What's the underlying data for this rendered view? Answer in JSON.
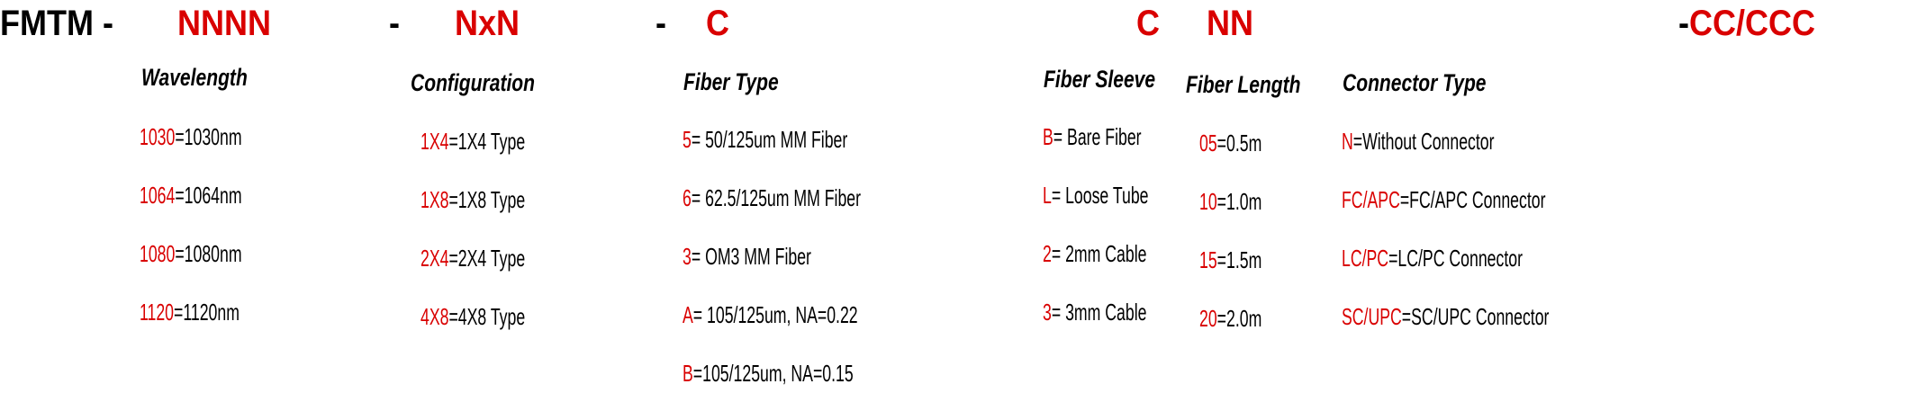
{
  "code_line": {
    "prefix": "FMTM -",
    "segments": [
      "NNNN",
      "-",
      "NxN",
      "-",
      "C",
      "C",
      "NN",
      "-",
      "CC/CCC"
    ]
  },
  "colors": {
    "code": "#d90000",
    "text": "#000000"
  },
  "columns": [
    {
      "title": "Wavelength",
      "items": [
        {
          "code": "1030",
          "desc": "=1030nm"
        },
        {
          "code": "1064",
          "desc": "=1064nm"
        },
        {
          "code": "1080",
          "desc": "=1080nm"
        },
        {
          "code": "1120",
          "desc": "=1120nm"
        }
      ]
    },
    {
      "title": "Configuration",
      "items": [
        {
          "code": "1X4",
          "desc": "=1X4 Type"
        },
        {
          "code": "1X8",
          "desc": "=1X8 Type"
        },
        {
          "code": "2X4",
          "desc": "=2X4 Type"
        },
        {
          "code": "4X8",
          "desc": "=4X8 Type"
        }
      ]
    },
    {
      "title": "Fiber Type",
      "items": [
        {
          "code": "5",
          "desc": "= 50/125um MM Fiber"
        },
        {
          "code": "6",
          "desc": "= 62.5/125um MM Fiber"
        },
        {
          "code": "3",
          "desc": "= OM3 MM Fiber"
        },
        {
          "code": "A",
          "desc": "= 105/125um, NA=0.22"
        },
        {
          "code": "B",
          "desc": "=105/125um, NA=0.15"
        }
      ]
    },
    {
      "title": "Fiber Sleeve",
      "items": [
        {
          "code": "B",
          "desc": "= Bare Fiber"
        },
        {
          "code": "L",
          "desc": "= Loose Tube"
        },
        {
          "code": "2",
          "desc": "= 2mm Cable"
        },
        {
          "code": "3",
          "desc": "= 3mm Cable"
        }
      ]
    },
    {
      "title": "Fiber Length",
      "items": [
        {
          "code": "05",
          "desc": "=0.5m"
        },
        {
          "code": "10",
          "desc": "=1.0m"
        },
        {
          "code": "15",
          "desc": "=1.5m"
        },
        {
          "code": "20",
          "desc": "=2.0m"
        }
      ]
    },
    {
      "title": "Connector Type",
      "items": [
        {
          "code": "N",
          "desc": "=Without Connector"
        },
        {
          "code": "FC/APC",
          "desc": "=FC/APC Connector"
        },
        {
          "code": "LC/PC",
          "desc": "=LC/PC Connector"
        },
        {
          "code": "SC/UPC",
          "desc": "=SC/UPC Connector"
        }
      ]
    }
  ]
}
